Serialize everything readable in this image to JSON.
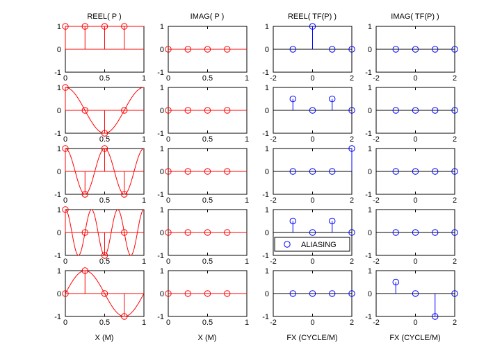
{
  "titles": [
    "REEL( P )",
    "IMAG( P )",
    "REEL( TF(P) )",
    "IMAG( TF(P) )"
  ],
  "xlabels": [
    "X (M)",
    "X (M)",
    "FX (CYCLE/M)",
    "FX (CYCLE/M)"
  ],
  "colors": {
    "signal": "#ff0000",
    "spectrum": "#0000ff",
    "axis": "#000000",
    "background": "#ffffff"
  },
  "legend": {
    "label": "ALIASING",
    "row": 3,
    "col": 2,
    "placement": "bottom"
  },
  "chart_data": [
    {
      "row": 0,
      "col": 0,
      "type": "stem",
      "title": "REEL( P )",
      "xlim": [
        0,
        1
      ],
      "ylim": [
        -1,
        1
      ],
      "xticks": [
        "0",
        "0.5",
        "1"
      ],
      "yticks": [
        "-1",
        "0",
        "1"
      ],
      "x": [
        0,
        0.25,
        0.5,
        0.75
      ],
      "y": [
        1,
        1,
        1,
        1
      ],
      "curve": "cos(0*2*pi*x)"
    },
    {
      "row": 0,
      "col": 1,
      "type": "stem",
      "title": "IMAG( P )",
      "xlim": [
        0,
        1
      ],
      "ylim": [
        -1,
        1
      ],
      "xticks": [
        "0",
        "0.5",
        "1"
      ],
      "yticks": [
        "-1",
        "0",
        "1"
      ],
      "x": [
        0,
        0.25,
        0.5,
        0.75
      ],
      "y": [
        0,
        0,
        0,
        0
      ],
      "curve": "0"
    },
    {
      "row": 0,
      "col": 2,
      "type": "stem",
      "title": "REEL( TF(P) )",
      "xlim": [
        -2,
        2
      ],
      "ylim": [
        -1,
        1
      ],
      "xticks": [
        "-2",
        "0",
        "2"
      ],
      "yticks": [
        "-1",
        "0",
        "1"
      ],
      "x": [
        -1,
        0,
        1,
        2
      ],
      "y": [
        0,
        1,
        0,
        0
      ]
    },
    {
      "row": 0,
      "col": 3,
      "type": "stem",
      "title": "IMAG( TF(P) )",
      "xlim": [
        -2,
        2
      ],
      "ylim": [
        -1,
        1
      ],
      "xticks": [
        "-2",
        "0",
        "2"
      ],
      "yticks": [
        "-1",
        "0",
        "1"
      ],
      "x": [
        -1,
        0,
        1,
        2
      ],
      "y": [
        0,
        0,
        0,
        0
      ]
    },
    {
      "row": 1,
      "col": 0,
      "type": "stem",
      "xlim": [
        0,
        1
      ],
      "ylim": [
        -1,
        1
      ],
      "xticks": [
        "0",
        "0.5",
        "1"
      ],
      "yticks": [
        "-1",
        "0",
        "1"
      ],
      "x": [
        0,
        0.25,
        0.5,
        0.75
      ],
      "y": [
        1,
        0,
        -1,
        0
      ],
      "curve": "cos(1*2*pi*x)"
    },
    {
      "row": 1,
      "col": 1,
      "type": "stem",
      "xlim": [
        0,
        1
      ],
      "ylim": [
        -1,
        1
      ],
      "xticks": [
        "0",
        "0.5",
        "1"
      ],
      "yticks": [
        "-1",
        "0",
        "1"
      ],
      "x": [
        0,
        0.25,
        0.5,
        0.75
      ],
      "y": [
        0,
        0,
        0,
        0
      ],
      "curve": "0"
    },
    {
      "row": 1,
      "col": 2,
      "type": "stem",
      "xlim": [
        -2,
        2
      ],
      "ylim": [
        -1,
        1
      ],
      "xticks": [
        "-2",
        "0",
        "2"
      ],
      "yticks": [
        "-1",
        "0",
        "1"
      ],
      "x": [
        -1,
        0,
        1,
        2
      ],
      "y": [
        0.5,
        0,
        0.5,
        0
      ]
    },
    {
      "row": 1,
      "col": 3,
      "type": "stem",
      "xlim": [
        -2,
        2
      ],
      "ylim": [
        -1,
        1
      ],
      "xticks": [
        "-2",
        "0",
        "2"
      ],
      "yticks": [
        "-1",
        "0",
        "1"
      ],
      "x": [
        -1,
        0,
        1,
        2
      ],
      "y": [
        0,
        0,
        0,
        0
      ]
    },
    {
      "row": 2,
      "col": 0,
      "type": "stem",
      "xlim": [
        0,
        1
      ],
      "ylim": [
        -1,
        1
      ],
      "xticks": [
        "0",
        "0.5",
        "1"
      ],
      "yticks": [
        "-1",
        "0",
        "1"
      ],
      "x": [
        0,
        0.25,
        0.5,
        0.75
      ],
      "y": [
        1,
        -1,
        1,
        -1
      ],
      "curve": "cos(2*2*pi*x)"
    },
    {
      "row": 2,
      "col": 1,
      "type": "stem",
      "xlim": [
        0,
        1
      ],
      "ylim": [
        -1,
        1
      ],
      "xticks": [
        "0",
        "0.5",
        "1"
      ],
      "yticks": [
        "-1",
        "0",
        "1"
      ],
      "x": [
        0,
        0.25,
        0.5,
        0.75
      ],
      "y": [
        0,
        0,
        0,
        0
      ],
      "curve": "0"
    },
    {
      "row": 2,
      "col": 2,
      "type": "stem",
      "xlim": [
        -2,
        2
      ],
      "ylim": [
        -1,
        1
      ],
      "xticks": [
        "-2",
        "0",
        "2"
      ],
      "yticks": [
        "-1",
        "0",
        "1"
      ],
      "x": [
        -1,
        0,
        1,
        2
      ],
      "y": [
        0,
        0,
        0,
        1
      ]
    },
    {
      "row": 2,
      "col": 3,
      "type": "stem",
      "xlim": [
        -2,
        2
      ],
      "ylim": [
        -1,
        1
      ],
      "xticks": [
        "-2",
        "0",
        "2"
      ],
      "yticks": [
        "-1",
        "0",
        "1"
      ],
      "x": [
        -1,
        0,
        1,
        2
      ],
      "y": [
        0,
        0,
        0,
        0
      ]
    },
    {
      "row": 3,
      "col": 0,
      "type": "stem",
      "xlim": [
        0,
        1
      ],
      "ylim": [
        -1,
        1
      ],
      "xticks": [
        "0",
        "0.5",
        "1"
      ],
      "yticks": [
        "-1",
        "0",
        "1"
      ],
      "x": [
        0,
        0.25,
        0.5,
        0.75
      ],
      "y": [
        1,
        0,
        -1,
        0
      ],
      "curve": "cos(3*2*pi*x)"
    },
    {
      "row": 3,
      "col": 1,
      "type": "stem",
      "xlim": [
        0,
        1
      ],
      "ylim": [
        -1,
        1
      ],
      "xticks": [
        "0",
        "0.5",
        "1"
      ],
      "yticks": [
        "-1",
        "0",
        "1"
      ],
      "x": [
        0,
        0.25,
        0.5,
        0.75
      ],
      "y": [
        0,
        0,
        0,
        0
      ],
      "curve": "0"
    },
    {
      "row": 3,
      "col": 2,
      "type": "stem",
      "xlim": [
        -2,
        2
      ],
      "ylim": [
        -1,
        1
      ],
      "xticks": [
        "-2",
        "0",
        "2"
      ],
      "yticks": [
        "-1",
        "0",
        "1"
      ],
      "x": [
        -1,
        0,
        1,
        2
      ],
      "y": [
        0.5,
        0,
        0.5,
        0
      ]
    },
    {
      "row": 3,
      "col": 3,
      "type": "stem",
      "xlim": [
        -2,
        2
      ],
      "ylim": [
        -1,
        1
      ],
      "xticks": [
        "-2",
        "0",
        "2"
      ],
      "yticks": [
        "-1",
        "0",
        "1"
      ],
      "x": [
        -1,
        0,
        1,
        2
      ],
      "y": [
        0,
        0,
        0,
        0
      ]
    },
    {
      "row": 4,
      "col": 0,
      "type": "stem",
      "xlim": [
        0,
        1
      ],
      "ylim": [
        -1,
        1
      ],
      "xticks": [
        "0",
        "0.5",
        "1"
      ],
      "yticks": [
        "-1",
        "0",
        "1"
      ],
      "x": [
        0,
        0.25,
        0.5,
        0.75
      ],
      "y": [
        0,
        1,
        0,
        -1
      ],
      "curve": "sin(1*2*pi*x)"
    },
    {
      "row": 4,
      "col": 1,
      "type": "stem",
      "xlim": [
        0,
        1
      ],
      "ylim": [
        -1,
        1
      ],
      "xticks": [
        "0",
        "0.5",
        "1"
      ],
      "yticks": [
        "-1",
        "0",
        "1"
      ],
      "x": [
        0,
        0.25,
        0.5,
        0.75
      ],
      "y": [
        0,
        0,
        0,
        0
      ],
      "curve": "0"
    },
    {
      "row": 4,
      "col": 2,
      "type": "stem",
      "xlim": [
        -2,
        2
      ],
      "ylim": [
        -1,
        1
      ],
      "xticks": [
        "-2",
        "0",
        "2"
      ],
      "yticks": [
        "-1",
        "0",
        "1"
      ],
      "x": [
        -1,
        0,
        1,
        2
      ],
      "y": [
        0,
        0,
        0,
        0
      ]
    },
    {
      "row": 4,
      "col": 3,
      "type": "stem",
      "xlim": [
        -2,
        2
      ],
      "ylim": [
        -1,
        1
      ],
      "xticks": [
        "-2",
        "0",
        "2"
      ],
      "yticks": [
        "-1",
        "0",
        "1"
      ],
      "x": [
        -1,
        0,
        1,
        2
      ],
      "y": [
        0.5,
        0,
        -1,
        0
      ]
    }
  ]
}
